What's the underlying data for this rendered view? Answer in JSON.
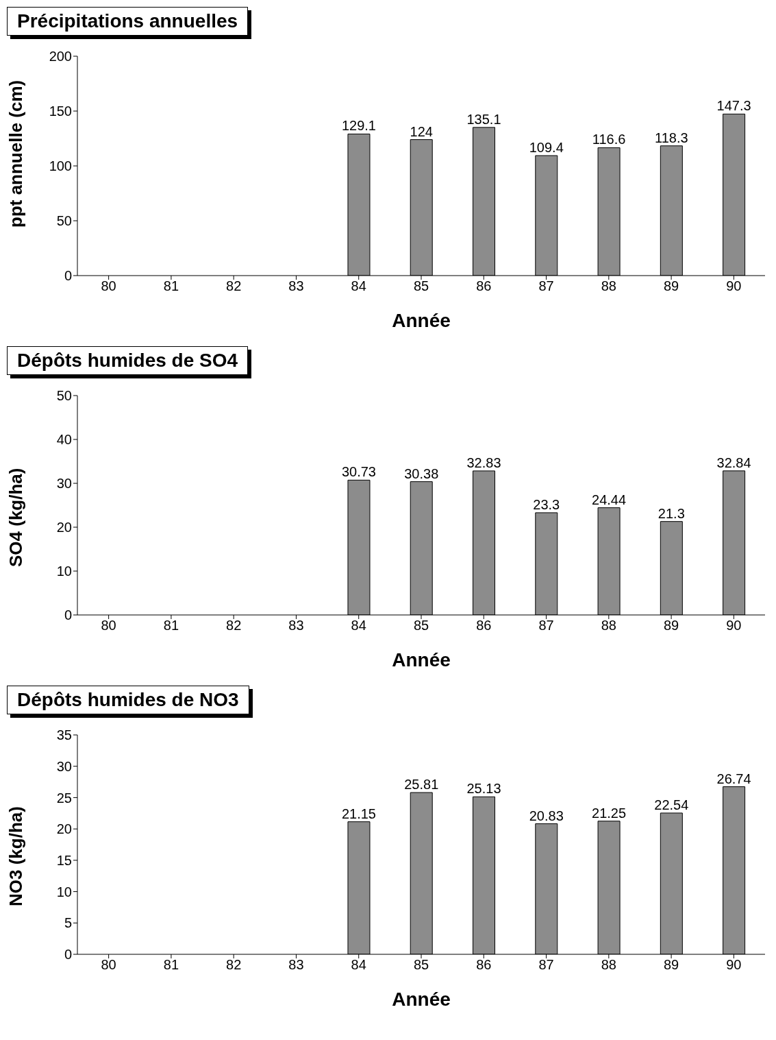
{
  "chart_data": [
    {
      "type": "bar",
      "title": "Précipitations annuelles",
      "xlabel": "Année",
      "ylabel": "ppt annuelle (cm)",
      "categories": [
        "80",
        "81",
        "82",
        "83",
        "84",
        "85",
        "86",
        "87",
        "88",
        "89",
        "90"
      ],
      "values": [
        null,
        null,
        null,
        null,
        129.1,
        124,
        135.1,
        109.4,
        116.6,
        118.3,
        147.3
      ],
      "color": "#8c8c8c",
      "ylim": [
        0,
        200
      ],
      "yticks": [
        0,
        50,
        100,
        150,
        200
      ],
      "data_labels": true
    },
    {
      "type": "bar",
      "title": "Dépôts humides de SO4",
      "xlabel": "Année",
      "ylabel": "SO4 (kg/ha)",
      "categories": [
        "80",
        "81",
        "82",
        "83",
        "84",
        "85",
        "86",
        "87",
        "88",
        "89",
        "90"
      ],
      "values": [
        null,
        null,
        null,
        null,
        30.73,
        30.38,
        32.83,
        23.3,
        24.44,
        21.3,
        32.84
      ],
      "color": "#8c8c8c",
      "ylim": [
        0,
        50
      ],
      "yticks": [
        0,
        10,
        20,
        30,
        40,
        50
      ],
      "data_labels": true
    },
    {
      "type": "bar",
      "title": "Dépôts humides de NO3",
      "xlabel": "Année",
      "ylabel": "NO3 (kg/ha)",
      "categories": [
        "80",
        "81",
        "82",
        "83",
        "84",
        "85",
        "86",
        "87",
        "88",
        "89",
        "90"
      ],
      "values": [
        null,
        null,
        null,
        null,
        21.15,
        25.81,
        25.13,
        20.83,
        21.25,
        22.54,
        26.74
      ],
      "color": "#8c8c8c",
      "ylim": [
        0,
        35
      ],
      "yticks": [
        0,
        5,
        10,
        15,
        20,
        25,
        30,
        35
      ],
      "data_labels": true
    }
  ]
}
